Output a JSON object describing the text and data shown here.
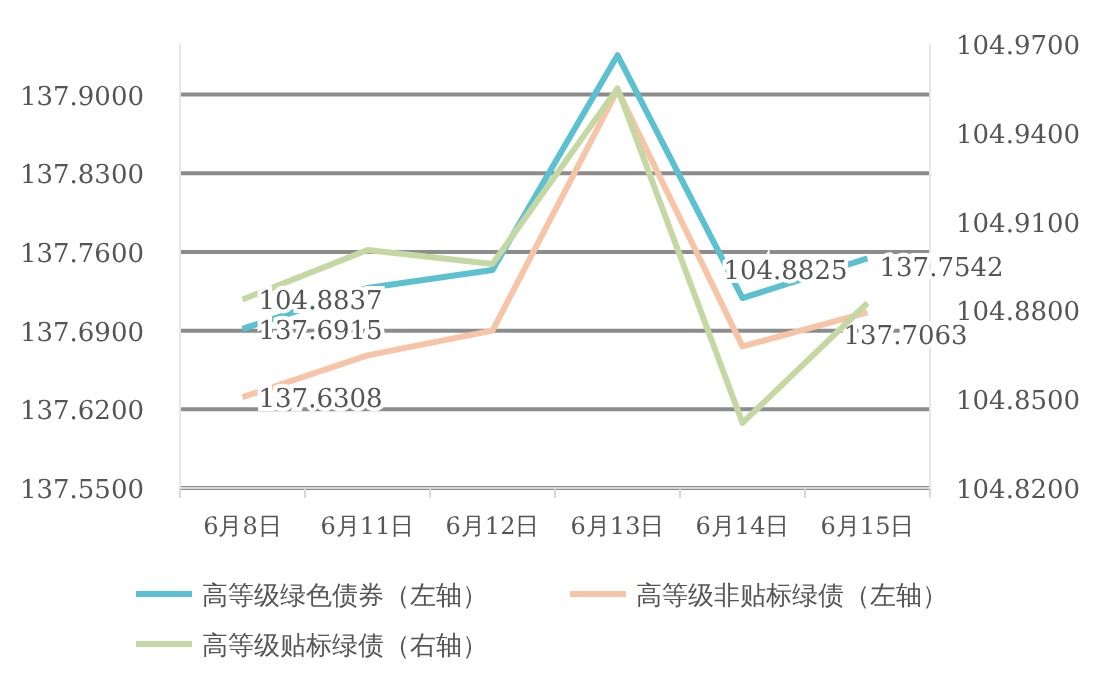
{
  "chart_data": {
    "type": "line",
    "categories": [
      "6月8日",
      "6月11日",
      "6月12日",
      "6月13日",
      "6月14日",
      "6月15日"
    ],
    "ylim": [
      137.55,
      137.945
    ],
    "yticks": [
      {
        "value": 137.55,
        "label": "137.5500"
      },
      {
        "value": 137.62,
        "label": "137.6200"
      },
      {
        "value": 137.69,
        "label": "137.6900"
      },
      {
        "value": 137.76,
        "label": "137.7600"
      },
      {
        "value": 137.83,
        "label": "137.8300"
      },
      {
        "value": 137.9,
        "label": "137.9000"
      }
    ],
    "y2lim": [
      104.82,
      104.97
    ],
    "y2ticks": [
      {
        "value": 104.82,
        "label": "104.8200"
      },
      {
        "value": 104.85,
        "label": "104.8500"
      },
      {
        "value": 104.88,
        "label": "104.8800"
      },
      {
        "value": 104.91,
        "label": "104.9100"
      },
      {
        "value": 104.94,
        "label": "104.9400"
      },
      {
        "value": 104.97,
        "label": "104.9700"
      }
    ],
    "grid": "y",
    "legend": "bottom",
    "marker": "none",
    "line_style": "solid",
    "series": [
      {
        "name": "高等级绿色债券（左轴）",
        "color": "#5bc0cf",
        "values": [
          137.6915,
          137.728,
          137.744,
          137.935,
          137.719,
          137.7542
        ],
        "value_labels": [
          "137.6915",
          null,
          null,
          null,
          null,
          "137.7542"
        ]
      },
      {
        "name": "高等级非贴标绿债（左轴）",
        "color": "#f6c4a6",
        "values": [
          137.6308,
          137.668,
          137.69,
          137.904,
          137.676,
          137.7063
        ],
        "value_labels": [
          "137.6308",
          null,
          null,
          null,
          null,
          "137.7063"
        ]
      },
      {
        "name": "高等级贴标绿债（右轴）",
        "color": "#c5d8a4",
        "axis": "y2",
        "values": [
          104.8837,
          104.9004,
          104.8957,
          104.955,
          104.842,
          104.8825
        ],
        "value_labels": [
          "104.8837",
          null,
          null,
          null,
          null,
          "104.8825"
        ]
      }
    ]
  }
}
